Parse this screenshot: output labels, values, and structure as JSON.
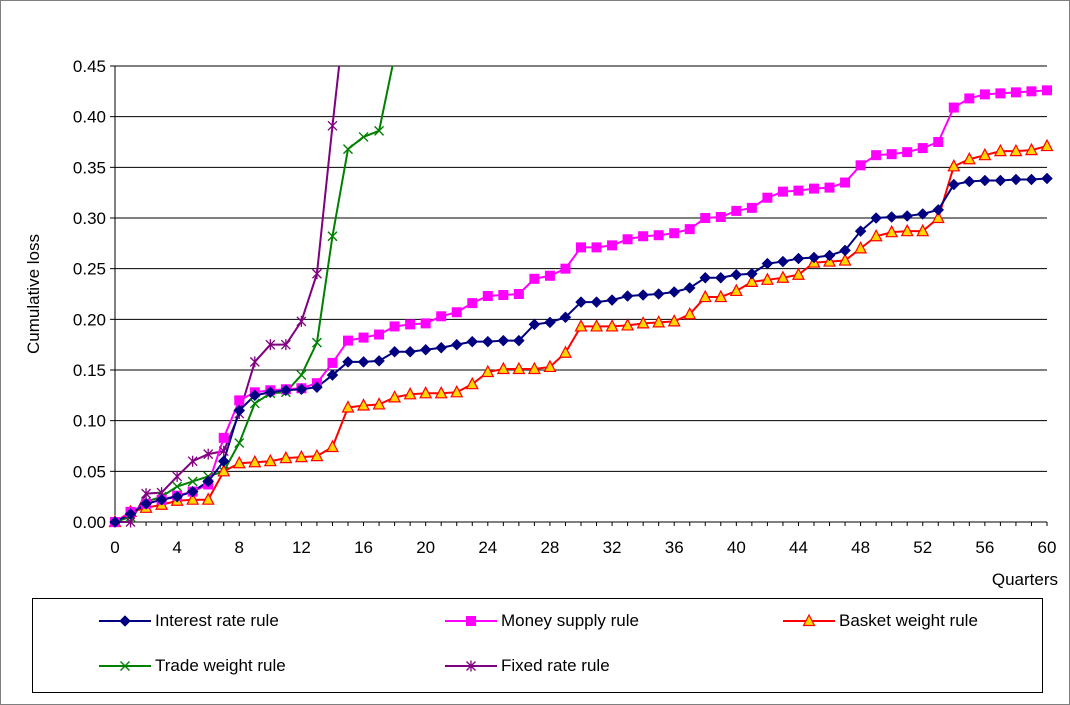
{
  "chart_data": {
    "type": "line",
    "title": "",
    "xlabel": "Quarters",
    "ylabel": "Cumulative loss",
    "xlim": [
      0,
      60
    ],
    "ylim": [
      0,
      0.45
    ],
    "x_ticks": [
      "0",
      "4",
      "8",
      "12",
      "16",
      "20",
      "24",
      "28",
      "32",
      "36",
      "40",
      "44",
      "48",
      "52",
      "56",
      "60"
    ],
    "y_ticks": [
      "0.00",
      "0.05",
      "0.10",
      "0.15",
      "0.20",
      "0.25",
      "0.30",
      "0.35",
      "0.40",
      "0.45"
    ],
    "grid": "horizontal",
    "legend_position": "bottom",
    "series": [
      {
        "name": "Interest rate rule",
        "color": "#000080",
        "marker": "diamond",
        "x": [
          0,
          1,
          2,
          3,
          4,
          5,
          6,
          7,
          8,
          9,
          10,
          11,
          12,
          13,
          14,
          15,
          16,
          17,
          18,
          19,
          20,
          21,
          22,
          23,
          24,
          25,
          26,
          27,
          28,
          29,
          30,
          31,
          32,
          33,
          34,
          35,
          36,
          37,
          38,
          39,
          40,
          41,
          42,
          43,
          44,
          45,
          46,
          47,
          48,
          49,
          50,
          51,
          52,
          53,
          54,
          55,
          56,
          57,
          58,
          59,
          60
        ],
        "y": [
          0.0,
          0.008,
          0.018,
          0.022,
          0.025,
          0.03,
          0.04,
          0.06,
          0.11,
          0.125,
          0.128,
          0.13,
          0.131,
          0.133,
          0.145,
          0.158,
          0.158,
          0.159,
          0.168,
          0.168,
          0.17,
          0.172,
          0.175,
          0.178,
          0.178,
          0.179,
          0.179,
          0.195,
          0.197,
          0.202,
          0.217,
          0.217,
          0.219,
          0.223,
          0.224,
          0.225,
          0.227,
          0.231,
          0.241,
          0.241,
          0.244,
          0.245,
          0.255,
          0.257,
          0.26,
          0.261,
          0.263,
          0.268,
          0.287,
          0.3,
          0.301,
          0.302,
          0.304,
          0.308,
          0.333,
          0.336,
          0.337,
          0.337,
          0.338,
          0.338,
          0.339
        ]
      },
      {
        "name": "Money supply rule",
        "color": "#ff00ff",
        "marker": "square",
        "x": [
          0,
          1,
          2,
          3,
          4,
          5,
          6,
          7,
          8,
          9,
          10,
          11,
          12,
          13,
          14,
          15,
          16,
          17,
          18,
          19,
          20,
          21,
          22,
          23,
          24,
          25,
          26,
          27,
          28,
          29,
          30,
          31,
          32,
          33,
          34,
          35,
          36,
          37,
          38,
          39,
          40,
          41,
          42,
          43,
          44,
          45,
          46,
          47,
          48,
          49,
          50,
          51,
          52,
          53,
          54,
          55,
          56,
          57,
          58,
          59,
          60
        ],
        "y": [
          0.0,
          0.01,
          0.018,
          0.022,
          0.026,
          0.03,
          0.037,
          0.083,
          0.12,
          0.128,
          0.13,
          0.131,
          0.132,
          0.137,
          0.157,
          0.179,
          0.182,
          0.185,
          0.193,
          0.195,
          0.196,
          0.203,
          0.207,
          0.216,
          0.223,
          0.224,
          0.225,
          0.24,
          0.243,
          0.25,
          0.271,
          0.271,
          0.273,
          0.279,
          0.282,
          0.283,
          0.285,
          0.289,
          0.3,
          0.301,
          0.307,
          0.31,
          0.32,
          0.326,
          0.327,
          0.329,
          0.33,
          0.335,
          0.352,
          0.362,
          0.363,
          0.365,
          0.369,
          0.375,
          0.409,
          0.418,
          0.422,
          0.423,
          0.424,
          0.425,
          0.426
        ]
      },
      {
        "name": "Basket weight rule",
        "color": "#ff0000",
        "marker": "triangle",
        "x": [
          0,
          1,
          2,
          3,
          4,
          5,
          6,
          7,
          8,
          9,
          10,
          11,
          12,
          13,
          14,
          15,
          16,
          17,
          18,
          19,
          20,
          21,
          22,
          23,
          24,
          25,
          26,
          27,
          28,
          29,
          30,
          31,
          32,
          33,
          34,
          35,
          36,
          37,
          38,
          39,
          40,
          41,
          42,
          43,
          44,
          45,
          46,
          47,
          48,
          49,
          50,
          51,
          52,
          53,
          54,
          55,
          56,
          57,
          58,
          59,
          60
        ],
        "y": [
          0.0,
          0.01,
          0.014,
          0.017,
          0.021,
          0.022,
          0.022,
          0.05,
          0.058,
          0.059,
          0.06,
          0.063,
          0.064,
          0.065,
          0.074,
          0.113,
          0.115,
          0.116,
          0.123,
          0.126,
          0.127,
          0.127,
          0.128,
          0.136,
          0.148,
          0.151,
          0.151,
          0.151,
          0.153,
          0.167,
          0.193,
          0.193,
          0.193,
          0.194,
          0.196,
          0.197,
          0.198,
          0.205,
          0.222,
          0.222,
          0.228,
          0.237,
          0.239,
          0.241,
          0.244,
          0.256,
          0.257,
          0.258,
          0.27,
          0.282,
          0.286,
          0.287,
          0.287,
          0.3,
          0.351,
          0.358,
          0.362,
          0.366,
          0.366,
          0.367,
          0.371
        ]
      },
      {
        "name": "Trade weight rule",
        "color": "#008000",
        "marker": "x",
        "x": [
          0,
          1,
          2,
          3,
          4,
          5,
          6,
          7,
          8,
          9,
          10,
          11,
          12,
          13,
          14,
          15,
          16,
          17,
          18
        ],
        "y": [
          0.0,
          0.005,
          0.02,
          0.025,
          0.035,
          0.04,
          0.045,
          0.05,
          0.078,
          0.117,
          0.127,
          0.128,
          0.145,
          0.177,
          0.282,
          0.368,
          0.38,
          0.386,
          0.46
        ]
      },
      {
        "name": "Fixed rate rule",
        "color": "#800080",
        "marker": "star",
        "x": [
          0,
          1,
          2,
          3,
          4,
          5,
          6,
          7,
          8,
          9,
          10,
          11,
          12,
          13,
          14,
          14.5
        ],
        "y": [
          0.0,
          0.0,
          0.028,
          0.029,
          0.045,
          0.06,
          0.067,
          0.07,
          0.107,
          0.158,
          0.175,
          0.175,
          0.198,
          0.245,
          0.391,
          0.46
        ]
      }
    ]
  }
}
